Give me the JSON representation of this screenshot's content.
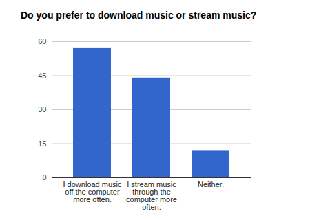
{
  "chart_data": {
    "type": "bar",
    "title": "Do you prefer to download music or stream music?",
    "categories": [
      "I download music off the computer more often.",
      "I stream music through the computer more often.",
      "Neither."
    ],
    "values": [
      57,
      44,
      12
    ],
    "color": "#3366cc",
    "ylim": [
      0,
      60
    ],
    "yticks": [
      0,
      15,
      30,
      45,
      60
    ],
    "grid": true
  }
}
